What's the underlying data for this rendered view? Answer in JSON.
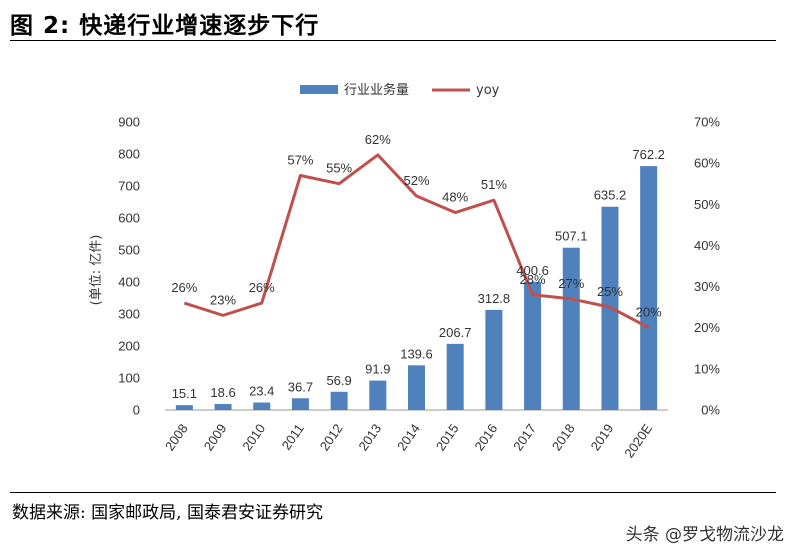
{
  "figure": {
    "title": "图 2: 快递行业增速逐步下行",
    "source": "数据来源: 国家邮政局, 国泰君安证券研究",
    "watermark": "头条 @罗戈物流沙龙"
  },
  "chart_data": {
    "type": "bar",
    "categories": [
      "2008",
      "2009",
      "2010",
      "2011",
      "2012",
      "2013",
      "2014",
      "2015",
      "2016",
      "2017",
      "2018",
      "2019",
      "2020E"
    ],
    "series": [
      {
        "name": "行业业务量",
        "type": "bar",
        "axis": "left",
        "color": "#4f81bd",
        "values": [
          15.1,
          18.6,
          23.4,
          36.7,
          56.9,
          91.9,
          139.6,
          206.7,
          312.8,
          400.6,
          507.1,
          635.2,
          762.2
        ],
        "labels": [
          "15.1",
          "18.6",
          "23.4",
          "36.7",
          "56.9",
          "91.9",
          "139.6",
          "206.7",
          "312.8",
          "400.6",
          "507.1",
          "635.2",
          "762.2"
        ]
      },
      {
        "name": "yoy",
        "type": "line",
        "axis": "right",
        "color": "#c0504d",
        "values": [
          26,
          23,
          26,
          57,
          55,
          62,
          52,
          48,
          51,
          28,
          27,
          25,
          20
        ],
        "labels": [
          "26%",
          "23%",
          "26%",
          "57%",
          "55%",
          "62%",
          "52%",
          "48%",
          "51%",
          "28%",
          "27%",
          "25%",
          "20%"
        ]
      }
    ],
    "ylabel": "(单位: 亿件)",
    "ylim": [
      0,
      900
    ],
    "yticks": [
      "0",
      "100",
      "200",
      "300",
      "400",
      "500",
      "600",
      "700",
      "800",
      "900"
    ],
    "y2lim": [
      0,
      70
    ],
    "y2ticks": [
      "0%",
      "10%",
      "20%",
      "30%",
      "40%",
      "50%",
      "60%",
      "70%"
    ],
    "legend_position": "top-center",
    "grid": false
  }
}
